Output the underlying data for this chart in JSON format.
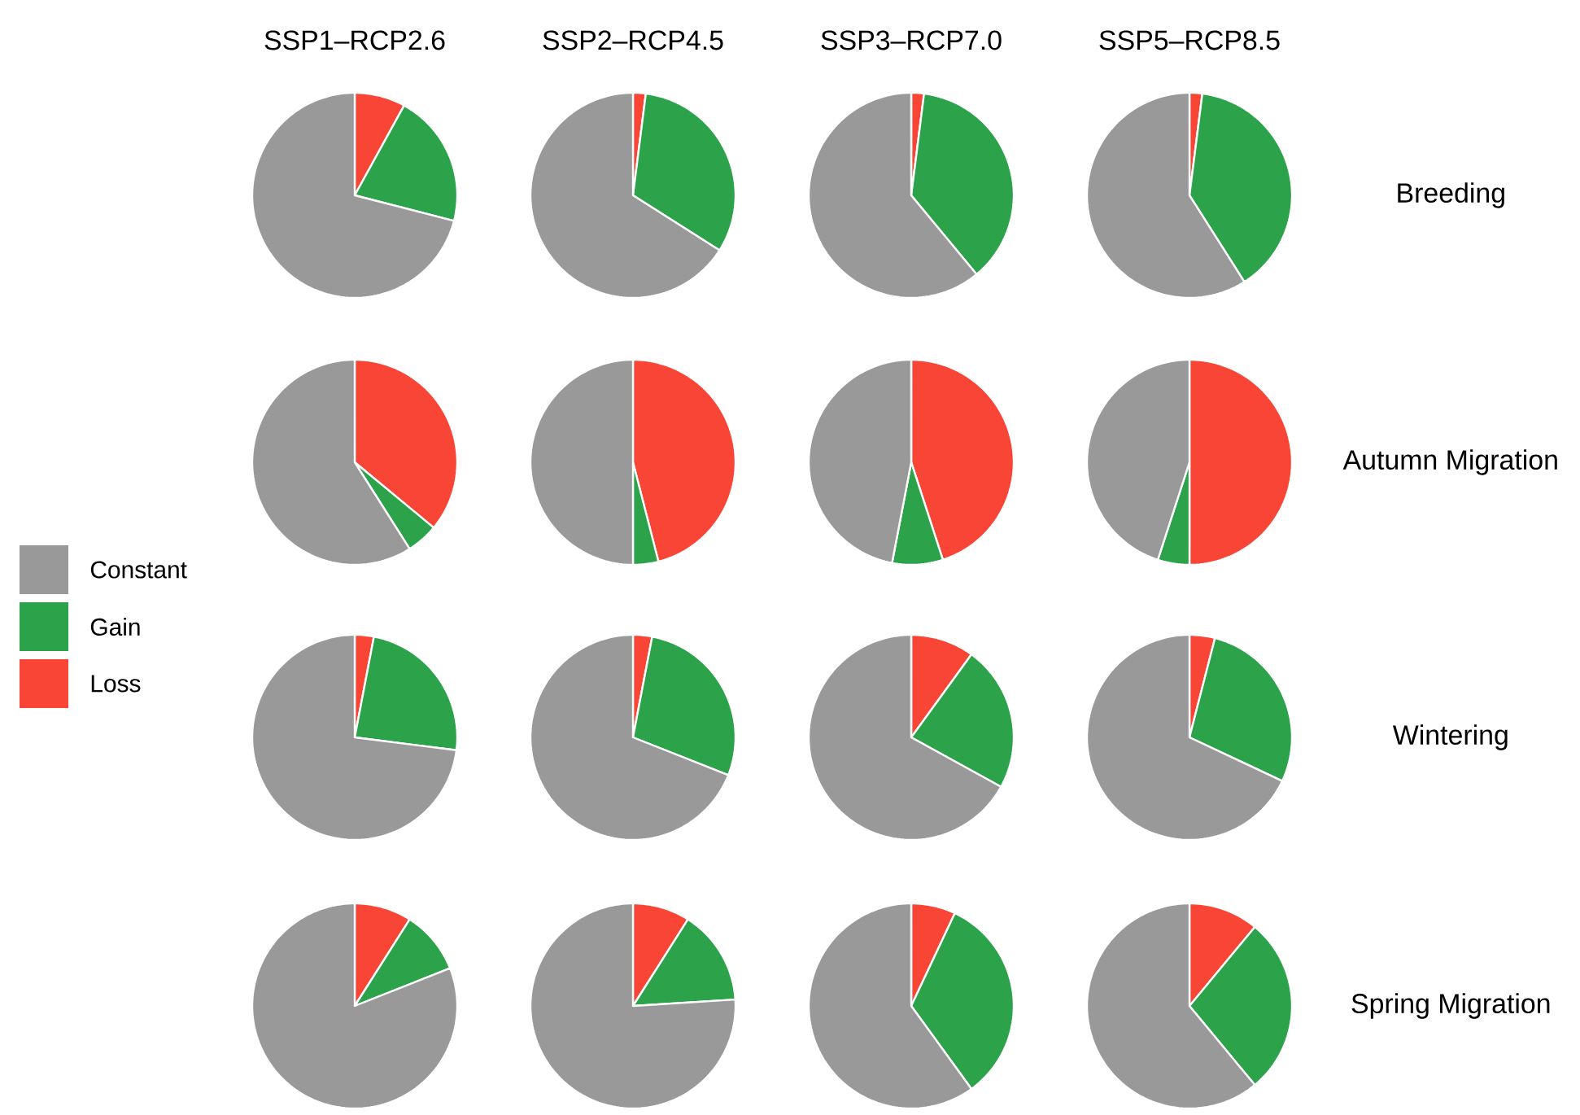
{
  "chart_data": [
    {
      "type": "pie",
      "title": "SSP1–RCP2.6",
      "categories": [
        null,
        null,
        null
      ],
      "values": [
        71,
        21,
        8
      ],
      "colors": [
        "#999999",
        "#2ca24a",
        "#f84535"
      ]
    },
    {
      "type": "pie",
      "title": "SSP2–RCP4.5",
      "categories": [
        null,
        null,
        null
      ],
      "values": [
        66,
        32,
        2
      ],
      "colors": [
        "#999999",
        "#2ca24a",
        "#f84535"
      ]
    },
    {
      "type": "pie",
      "title": "SSP3–RCP7.0",
      "categories": [
        null,
        null,
        null
      ],
      "values": [
        61,
        37,
        2
      ],
      "colors": [
        "#999999",
        "#2ca24a",
        "#f84535"
      ]
    },
    {
      "type": "pie",
      "title": "SSP5–RCP8.5",
      "y2label": "Breeding",
      "categories": [
        null,
        null,
        null
      ],
      "values": [
        59,
        39,
        2
      ],
      "colors": [
        "#999999",
        "#2ca24a",
        "#f84535"
      ]
    },
    {
      "type": "pie",
      "legend": "left",
      "categories": [
        "Constant",
        "Gain",
        "Loss"
      ],
      "values": [
        59,
        5,
        36
      ],
      "colors": [
        "#999999",
        "#2ca24a",
        "#f84535"
      ]
    },
    {
      "type": "pie",
      "categories": [
        null,
        null,
        null
      ],
      "values": [
        50,
        4,
        46
      ],
      "colors": [
        "#999999",
        "#2ca24a",
        "#f84535"
      ]
    },
    {
      "type": "pie",
      "categories": [
        null,
        null,
        null
      ],
      "values": [
        47,
        8,
        45
      ],
      "colors": [
        "#999999",
        "#2ca24a",
        "#f84535"
      ]
    },
    {
      "type": "pie",
      "y2label": "Autumn Migration",
      "categories": [
        null,
        null,
        null
      ],
      "values": [
        45,
        5,
        50
      ],
      "colors": [
        "#999999",
        "#2ca24a",
        "#f84535"
      ]
    },
    {
      "type": "pie",
      "categories": [
        null,
        null,
        null
      ],
      "values": [
        73,
        24,
        3
      ],
      "colors": [
        "#999999",
        "#2ca24a",
        "#f84535"
      ]
    },
    {
      "type": "pie",
      "categories": [
        null,
        null,
        null
      ],
      "values": [
        69,
        28,
        3
      ],
      "colors": [
        "#999999",
        "#2ca24a",
        "#f84535"
      ]
    },
    {
      "type": "pie",
      "categories": [
        null,
        null,
        null
      ],
      "values": [
        67,
        23,
        10
      ],
      "colors": [
        "#999999",
        "#2ca24a",
        "#f84535"
      ]
    },
    {
      "type": "pie",
      "y2label": "Wintering",
      "categories": [
        null,
        null,
        null
      ],
      "values": [
        68,
        28,
        4
      ],
      "colors": [
        "#999999",
        "#2ca24a",
        "#f84535"
      ]
    },
    {
      "type": "pie",
      "categories": [
        null,
        null,
        null
      ],
      "values": [
        81,
        10,
        9
      ],
      "colors": [
        "#999999",
        "#2ca24a",
        "#f84535"
      ]
    },
    {
      "type": "pie",
      "categories": [
        null,
        null,
        null
      ],
      "values": [
        76,
        15,
        9
      ],
      "colors": [
        "#999999",
        "#2ca24a",
        "#f84535"
      ]
    },
    {
      "type": "pie",
      "categories": [
        null,
        null,
        null
      ],
      "values": [
        60,
        33,
        7
      ],
      "colors": [
        "#999999",
        "#2ca24a",
        "#f84535"
      ]
    },
    {
      "type": "pie",
      "y2label": "Spring Migration",
      "categories": [
        null,
        null,
        null
      ],
      "values": [
        61,
        28,
        11
      ],
      "colors": [
        "#999999",
        "#2ca24a",
        "#f84535"
      ]
    }
  ]
}
